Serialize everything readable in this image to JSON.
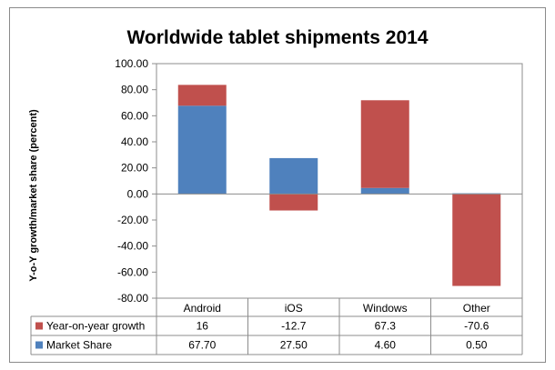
{
  "chart_data": {
    "type": "bar",
    "stacked": true,
    "title": "Worldwide tablet shipments 2014",
    "ylabel": "Y-o-Y growth/market  share (percent)",
    "xlabel": "",
    "ylim": [
      -80,
      100
    ],
    "yticks": [
      "100.00",
      "80.00",
      "60.00",
      "40.00",
      "20.00",
      "0.00",
      "-20.00",
      "-40.00",
      "-60.00",
      "-80.00"
    ],
    "ytick_values": [
      100,
      80,
      60,
      40,
      20,
      0,
      -20,
      -40,
      -60,
      -80
    ],
    "categories": [
      "Android",
      "iOS",
      "Windows",
      "Other"
    ],
    "series": [
      {
        "name": "Year-on-year growth",
        "color": "#c0504d",
        "values": [
          16,
          -12.7,
          67.3,
          -70.6
        ],
        "labels": [
          "16",
          "-12.7",
          "67.3",
          "-70.6"
        ]
      },
      {
        "name": "Market Share",
        "color": "#4f81bd",
        "values": [
          67.7,
          27.5,
          4.6,
          0.5
        ],
        "labels": [
          "67.70",
          "27.50",
          "4.60",
          "0.50"
        ]
      }
    ],
    "grid": false,
    "legend": "data-table-below"
  }
}
